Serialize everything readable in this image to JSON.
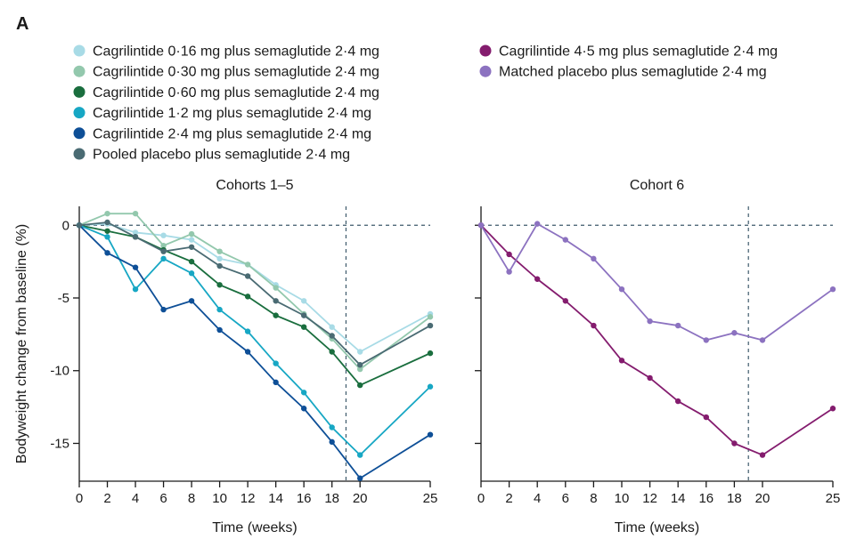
{
  "figure": {
    "panel_label": "A"
  },
  "chart_data": [
    {
      "type": "line",
      "title": "Cohorts 1–5",
      "xlabel": "Time (weeks)",
      "ylabel": "Bodyweight change from baseline (%)",
      "x": [
        0,
        2,
        4,
        6,
        8,
        10,
        12,
        14,
        16,
        18,
        20,
        25
      ],
      "xticks": [
        0,
        2,
        4,
        6,
        8,
        10,
        12,
        14,
        16,
        18,
        20,
        25
      ],
      "yticks": [
        0,
        -5,
        -10,
        -15
      ],
      "xlim": [
        0,
        25
      ],
      "ylim": [
        -17.6,
        1.3
      ],
      "reference_lines": {
        "y": 0,
        "x": 19
      },
      "series": [
        {
          "name": "Cagrilintide 0·16 mg plus semaglutide 2·4 mg",
          "color": "#a8dbe6",
          "values": [
            0,
            0.1,
            -0.5,
            -0.7,
            -1.0,
            -2.3,
            -2.7,
            -4.1,
            -5.2,
            -7.0,
            -8.7,
            -6.1
          ]
        },
        {
          "name": "Cagrilintide 0·30 mg plus semaglutide 2·4 mg",
          "color": "#93c8ad",
          "values": [
            0,
            0.8,
            0.8,
            -1.4,
            -0.6,
            -1.8,
            -2.7,
            -4.3,
            -6.1,
            -7.8,
            -9.9,
            -6.3
          ]
        },
        {
          "name": "Cagrilintide 0·60 mg plus semaglutide 2·4 mg",
          "color": "#1a6e3e",
          "values": [
            0,
            -0.4,
            -0.8,
            -1.7,
            -2.5,
            -4.1,
            -4.9,
            -6.2,
            -7.0,
            -8.7,
            -11.0,
            -8.8
          ]
        },
        {
          "name": "Cagrilintide 1·2 mg plus semaglutide 2·4 mg",
          "color": "#17a7c4",
          "values": [
            0,
            -0.8,
            -4.4,
            -2.3,
            -3.3,
            -5.8,
            -7.3,
            -9.5,
            -11.5,
            -13.9,
            -15.8,
            -11.1
          ]
        },
        {
          "name": "Cagrilintide 2·4 mg plus semaglutide 2·4 mg",
          "color": "#0e4f97",
          "values": [
            0,
            -1.9,
            -2.9,
            -5.8,
            -5.2,
            -7.2,
            -8.7,
            -10.8,
            -12.6,
            -14.9,
            -17.4,
            -14.4
          ]
        },
        {
          "name": "Pooled placebo plus semaglutide 2·4 mg",
          "color": "#4a6b73",
          "values": [
            0,
            0.2,
            -0.8,
            -1.8,
            -1.5,
            -2.8,
            -3.5,
            -5.2,
            -6.2,
            -7.6,
            -9.6,
            -6.9
          ]
        }
      ]
    },
    {
      "type": "line",
      "title": "Cohort 6",
      "xlabel": "Time (weeks)",
      "ylabel": "",
      "x": [
        0,
        2,
        4,
        6,
        8,
        10,
        12,
        14,
        16,
        18,
        20,
        25
      ],
      "xticks": [
        0,
        2,
        4,
        6,
        8,
        10,
        12,
        14,
        16,
        18,
        20,
        25
      ],
      "yticks": [
        0,
        -5,
        -10,
        -15
      ],
      "xlim": [
        0,
        25
      ],
      "ylim": [
        -17.6,
        1.3
      ],
      "reference_lines": {
        "y": 0,
        "x": 19
      },
      "series": [
        {
          "name": "Cagrilintide 4·5 mg plus semaglutide 2·4 mg",
          "color": "#841c6e",
          "values": [
            0,
            -2.0,
            -3.7,
            -5.2,
            -6.9,
            -9.3,
            -10.5,
            -12.1,
            -13.2,
            -15.0,
            -15.8,
            -12.6
          ]
        },
        {
          "name": "Matched placebo plus semaglutide 2·4 mg",
          "color": "#8c72c0",
          "values": [
            0,
            -3.2,
            0.1,
            -1.0,
            -2.3,
            -4.4,
            -6.6,
            -6.9,
            -7.9,
            -7.4,
            -7.9,
            -4.4
          ]
        }
      ]
    }
  ]
}
